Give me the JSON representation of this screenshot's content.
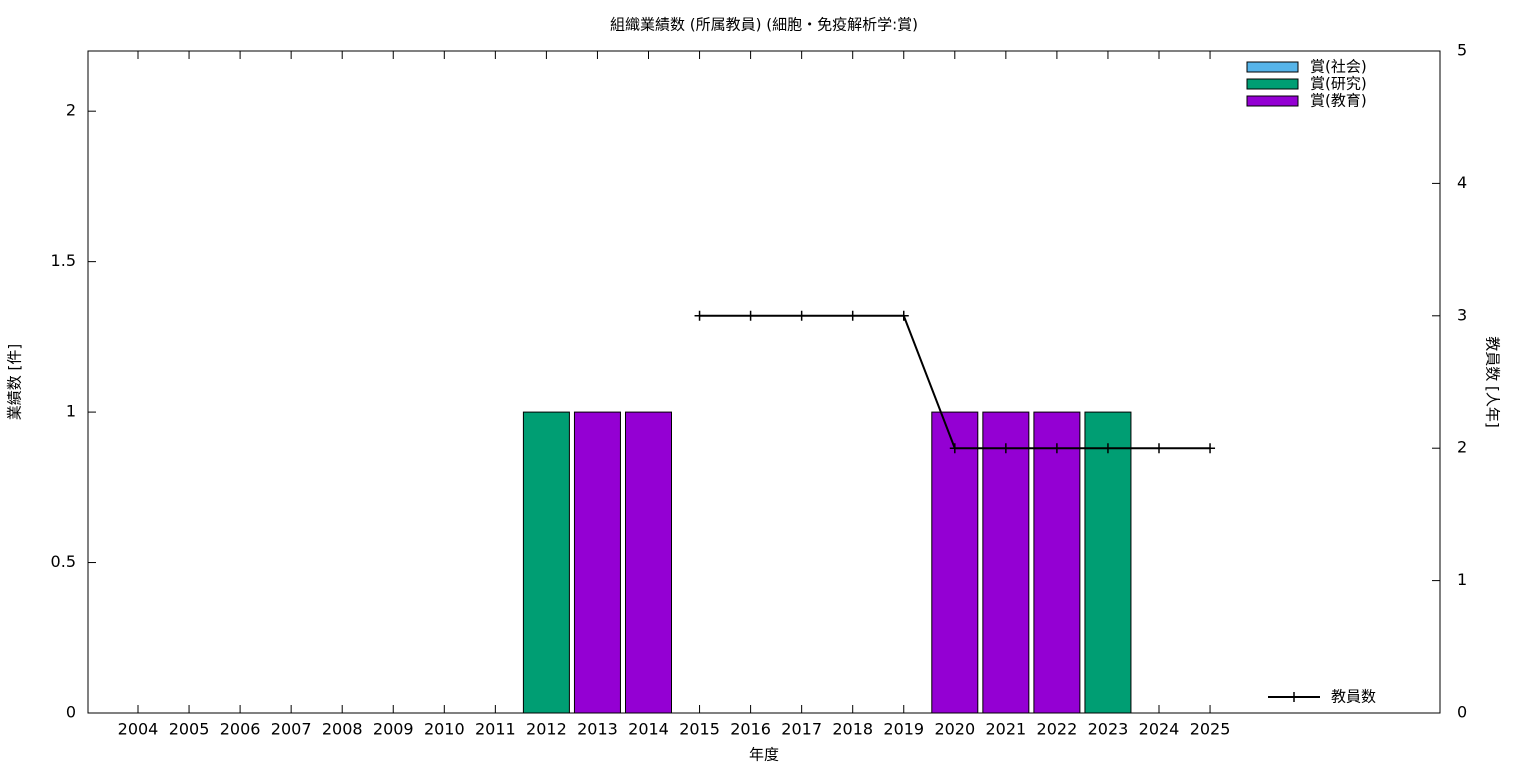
{
  "chart_data": {
    "type": "bar",
    "stacked": true,
    "title": "組織業績数 (所属教員) (細胞・免疫解析学:賞)",
    "xlabel": "年度",
    "ylabel": "業績数 [件]",
    "y2label": "教員数 [人年]",
    "categories": [
      "2004",
      "2005",
      "2006",
      "2007",
      "2008",
      "2009",
      "2010",
      "2011",
      "2012",
      "2013",
      "2014",
      "2015",
      "2016",
      "2017",
      "2018",
      "2019",
      "2020",
      "2021",
      "2022",
      "2023",
      "2024",
      "2025"
    ],
    "series": [
      {
        "name": "賞(社会)",
        "color": "#56b4e9",
        "values": [
          0,
          0,
          0,
          0,
          0,
          0,
          0,
          0,
          0,
          0,
          0,
          0,
          0,
          0,
          0,
          0,
          0,
          0,
          0,
          0,
          0,
          0
        ]
      },
      {
        "name": "賞(研究)",
        "color": "#009e73",
        "values": [
          0,
          0,
          0,
          0,
          0,
          0,
          0,
          0,
          1,
          0,
          0,
          0,
          0,
          0,
          0,
          0,
          0,
          0,
          0,
          1,
          0,
          0
        ]
      },
      {
        "name": "賞(教育)",
        "color": "#9400d3",
        "values": [
          0,
          0,
          0,
          0,
          0,
          0,
          0,
          0,
          0,
          1,
          1,
          0,
          0,
          0,
          0,
          0,
          1,
          1,
          1,
          0,
          0,
          0
        ]
      },
      {
        "name": "教員数",
        "type": "line",
        "axis": "y2",
        "color": "#000000",
        "values": [
          null,
          null,
          null,
          null,
          null,
          null,
          null,
          null,
          null,
          null,
          null,
          3,
          3,
          3,
          3,
          3,
          2,
          2,
          2,
          2,
          2,
          2
        ]
      }
    ],
    "ylim": [
      0,
      2.2
    ],
    "yticks": [
      0,
      0.5,
      1,
      1.5,
      2
    ],
    "y2lim": [
      0,
      5
    ],
    "y2ticks": [
      0,
      1,
      2,
      3,
      4,
      5
    ]
  }
}
